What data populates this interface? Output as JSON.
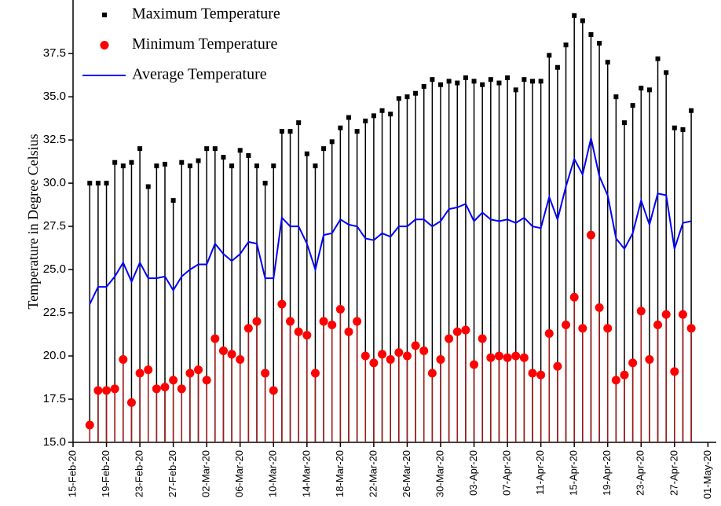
{
  "chart_data": {
    "type": "stem",
    "y_label": "Temperature in Degree Celsius",
    "x": [
      "2020-02-17",
      "2020-02-18",
      "2020-02-19",
      "2020-02-20",
      "2020-02-21",
      "2020-02-22",
      "2020-02-23",
      "2020-02-24",
      "2020-02-25",
      "2020-02-26",
      "2020-02-27",
      "2020-02-28",
      "2020-02-29",
      "2020-03-01",
      "2020-03-02",
      "2020-03-03",
      "2020-03-04",
      "2020-03-05",
      "2020-03-06",
      "2020-03-07",
      "2020-03-08",
      "2020-03-09",
      "2020-03-10",
      "2020-03-11",
      "2020-03-12",
      "2020-03-13",
      "2020-03-14",
      "2020-03-15",
      "2020-03-16",
      "2020-03-17",
      "2020-03-18",
      "2020-03-19",
      "2020-03-20",
      "2020-03-21",
      "2020-03-22",
      "2020-03-23",
      "2020-03-24",
      "2020-03-25",
      "2020-03-26",
      "2020-03-27",
      "2020-03-28",
      "2020-03-29",
      "2020-03-30",
      "2020-03-31",
      "2020-04-01",
      "2020-04-02",
      "2020-04-03",
      "2020-04-04",
      "2020-04-05",
      "2020-04-06",
      "2020-04-07",
      "2020-04-08",
      "2020-04-09",
      "2020-04-10",
      "2020-04-11",
      "2020-04-12",
      "2020-04-13",
      "2020-04-14",
      "2020-04-15",
      "2020-04-16",
      "2020-04-17",
      "2020-04-18",
      "2020-04-19",
      "2020-04-20",
      "2020-04-21",
      "2020-04-22",
      "2020-04-23",
      "2020-04-24",
      "2020-04-25",
      "2020-04-26",
      "2020-04-27",
      "2020-04-28",
      "2020-04-29"
    ],
    "series": [
      {
        "name": "Maximum Temperature",
        "color": "#000000",
        "marker": "square",
        "values": [
          30,
          30,
          30,
          31.2,
          31,
          31.2,
          32,
          29.8,
          31,
          31.1,
          29,
          31.2,
          31,
          31.3,
          32,
          32,
          31.5,
          31,
          31.9,
          31.6,
          31,
          30,
          31,
          33,
          33,
          33.5,
          31.7,
          31,
          32,
          32.4,
          33.2,
          33.8,
          33,
          33.6,
          33.9,
          34.2,
          34,
          34.9,
          35,
          35.2,
          35.6,
          36,
          35.7,
          35.9,
          35.8,
          36.1,
          35.9,
          35.7,
          36,
          35.8,
          36.1,
          35.4,
          36,
          35.9,
          35.9,
          37.4,
          36.7,
          38,
          39.7,
          39.4,
          38.6,
          38.1,
          37,
          35,
          33.5,
          34.5,
          35.5,
          35.4,
          37.2,
          36.4,
          33.2,
          33.1,
          34.2
        ]
      },
      {
        "name": "Minimum Temperature",
        "color": "#ff0000",
        "marker": "circle",
        "values": [
          16,
          18,
          18,
          18.1,
          19.8,
          17.3,
          19,
          19.2,
          18.1,
          18.2,
          18.6,
          18.1,
          19,
          19.2,
          18.6,
          21,
          20.3,
          20.1,
          19.8,
          21.6,
          22,
          19,
          18,
          23,
          22,
          21.4,
          21.2,
          19,
          22,
          21.8,
          22.7,
          21.4,
          22,
          20,
          19.6,
          20.1,
          19.8,
          20.2,
          20,
          20.6,
          20.3,
          19,
          19.8,
          21,
          21.4,
          21.5,
          19.5,
          21,
          19.9,
          20,
          19.9,
          20,
          19.9,
          19,
          18.9,
          21.3,
          19.4,
          21.8,
          23.4,
          21.6,
          27,
          22.8,
          21.6,
          18.6,
          18.9,
          19.6,
          22.6,
          19.8,
          21.8,
          22.4,
          19.1,
          22.4,
          21.6
        ]
      },
      {
        "name": "Average Temperature",
        "color": "#0000ff",
        "values": [
          23,
          24,
          24,
          24.6,
          25.4,
          24.3,
          25.4,
          24.5,
          24.5,
          24.6,
          23.8,
          24.6,
          25,
          25.3,
          25.3,
          26.5,
          25.9,
          25.5,
          25.9,
          26.6,
          26.5,
          24.5,
          24.5,
          28,
          27.5,
          27.5,
          26.5,
          25,
          27,
          27.1,
          27.9,
          27.6,
          27.5,
          26.8,
          26.7,
          27.1,
          26.9,
          27.5,
          27.5,
          27.9,
          27.9,
          27.5,
          27.8,
          28.5,
          28.6,
          28.8,
          27.8,
          28.3,
          27.9,
          27.8,
          27.9,
          27.7,
          28,
          27.5,
          27.4,
          29.2,
          27.9,
          29.8,
          31.4,
          30.5,
          32.6,
          30.4,
          29.3,
          26.8,
          26.2,
          27.1,
          29,
          27.6,
          29.4,
          29.3,
          26.2,
          27.7,
          27.8
        ]
      }
    ],
    "xlim": [
      "2020-02-15",
      "2020-05-02"
    ],
    "xticks": [
      {
        "value": "2020-02-15",
        "label": "15-Feb-20"
      },
      {
        "value": "2020-02-19",
        "label": "19-Feb-20"
      },
      {
        "value": "2020-02-23",
        "label": "23-Feb-20"
      },
      {
        "value": "2020-02-27",
        "label": "27-Feb-20"
      },
      {
        "value": "2020-03-02",
        "label": "02-Mar-20"
      },
      {
        "value": "2020-03-06",
        "label": "06-Mar-20"
      },
      {
        "value": "2020-03-10",
        "label": "10-Mar-20"
      },
      {
        "value": "2020-03-14",
        "label": "14-Mar-20"
      },
      {
        "value": "2020-03-18",
        "label": "18-Mar-20"
      },
      {
        "value": "2020-03-22",
        "label": "22-Mar-20"
      },
      {
        "value": "2020-03-26",
        "label": "26-Mar-20"
      },
      {
        "value": "2020-03-30",
        "label": "30-Mar-20"
      },
      {
        "value": "2020-04-03",
        "label": "03-Apr-20"
      },
      {
        "value": "2020-04-07",
        "label": "07-Apr-20"
      },
      {
        "value": "2020-04-11",
        "label": "11-Apr-20"
      },
      {
        "value": "2020-04-15",
        "label": "15-Apr-20"
      },
      {
        "value": "2020-04-19",
        "label": "19-Apr-20"
      },
      {
        "value": "2020-04-23",
        "label": "23-Apr-20"
      },
      {
        "value": "2020-04-27",
        "label": "27-Apr-20"
      },
      {
        "value": "2020-05-01",
        "label": "01-May-20"
      }
    ],
    "ylim": [
      15,
      40.6
    ],
    "yticks": [
      {
        "value": 15,
        "label": "15.0"
      },
      17.5,
      {
        "value": 20,
        "label": "20.0"
      },
      22.5,
      {
        "value": 25,
        "label": "25.0"
      },
      27.5,
      {
        "value": 30,
        "label": "30.0"
      },
      32.5,
      {
        "value": 35,
        "label": "35.0"
      },
      37.5
    ],
    "legend": "upper left"
  }
}
